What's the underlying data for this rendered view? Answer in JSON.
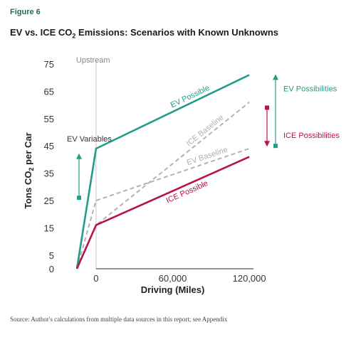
{
  "figure_label": "Figure 6",
  "title_pre": "EV vs. ICE CO",
  "title_sub": "2",
  "title_post": " Emissions: Scenarios with Known Unknowns",
  "source": "Source: Author's calculations from multiple data sources in this report; see Appendix",
  "colors": {
    "ev": "#1f9e88",
    "ice": "#b8134a",
    "baseline": "#b3b3b3",
    "axis": "#555555"
  },
  "chart_data": {
    "type": "line",
    "xlabel": "Driving (Miles)",
    "ylabel_pre": "Tons CO",
    "ylabel_sub": "2",
    "ylabel_post": " per Car",
    "x_ticks": [
      {
        "value": 0,
        "label": "0"
      },
      {
        "value": 60000,
        "label": "60,000"
      },
      {
        "value": 120000,
        "label": "120,000"
      }
    ],
    "y_ticks": [
      0,
      5,
      15,
      25,
      35,
      45,
      55,
      65,
      75
    ],
    "xlim": [
      -15000,
      140000
    ],
    "ylim": [
      0,
      75
    ],
    "series": [
      {
        "name": "EV Possible",
        "style": "solid",
        "color": "#1f9e88",
        "points": [
          [
            -15000,
            0
          ],
          [
            0,
            44
          ],
          [
            120000,
            71
          ]
        ]
      },
      {
        "name": "ICE Baseline",
        "style": "dashed",
        "color": "#b3b3b3",
        "points": [
          [
            -15000,
            0
          ],
          [
            0,
            16
          ],
          [
            120000,
            61
          ]
        ]
      },
      {
        "name": "EV Baseline",
        "style": "dashed",
        "color": "#b3b3b3",
        "points": [
          [
            -15000,
            0
          ],
          [
            0,
            25
          ],
          [
            120000,
            44
          ]
        ]
      },
      {
        "name": "ICE Possible",
        "style": "solid",
        "color": "#b8134a",
        "points": [
          [
            -15000,
            0
          ],
          [
            0,
            16
          ],
          [
            120000,
            41
          ]
        ]
      }
    ],
    "annotations": {
      "upstream": "Upstream",
      "ev_variables": "EV Variables",
      "ev_possibilities": "EV Possibilities",
      "ice_possibilities": "ICE Possibilities"
    },
    "ev_variables_range": [
      26,
      44
    ],
    "ev_possibilities_range": [
      45,
      71
    ],
    "ice_possibilities_range": [
      44,
      59
    ]
  }
}
